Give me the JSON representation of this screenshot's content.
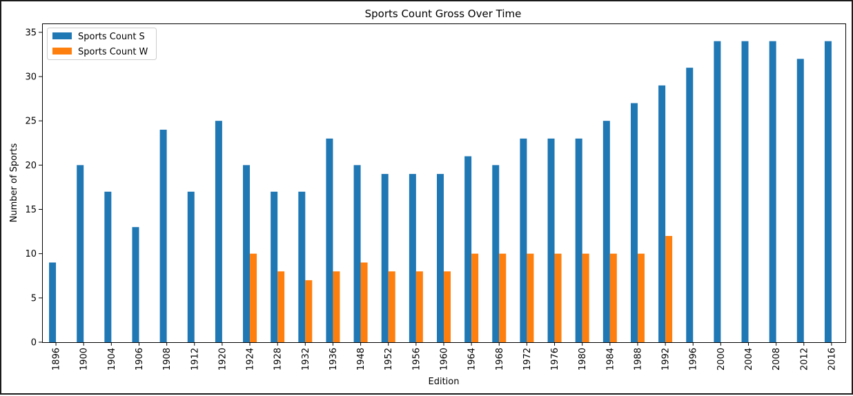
{
  "chart_data": {
    "type": "bar",
    "title": "Sports Count Gross Over Time",
    "xlabel": "Edition",
    "ylabel": "Number of Sports",
    "ylim": [
      0,
      36
    ],
    "yticks": [
      0,
      5,
      10,
      15,
      20,
      25,
      30,
      35
    ],
    "legend_position": "top-left",
    "grid": false,
    "categories": [
      "1896",
      "1900",
      "1904",
      "1906",
      "1908",
      "1912",
      "1920",
      "1924",
      "1928",
      "1932",
      "1936",
      "1948",
      "1952",
      "1956",
      "1960",
      "1964",
      "1968",
      "1972",
      "1976",
      "1980",
      "1984",
      "1988",
      "1992",
      "1996",
      "2000",
      "2004",
      "2008",
      "2012",
      "2016"
    ],
    "series": [
      {
        "name": "Sports Count S",
        "color": "#1f77b4",
        "values": [
          9,
          20,
          17,
          13,
          24,
          17,
          25,
          20,
          17,
          17,
          23,
          20,
          19,
          19,
          19,
          21,
          20,
          23,
          23,
          23,
          25,
          27,
          29,
          31,
          34,
          34,
          34,
          32,
          34
        ]
      },
      {
        "name": "Sports Count W",
        "color": "#ff7f0e",
        "values": [
          null,
          null,
          null,
          null,
          null,
          null,
          null,
          10,
          8,
          7,
          8,
          9,
          8,
          8,
          8,
          10,
          10,
          10,
          10,
          10,
          10,
          10,
          12,
          null,
          null,
          null,
          null,
          null,
          null
        ]
      }
    ]
  }
}
